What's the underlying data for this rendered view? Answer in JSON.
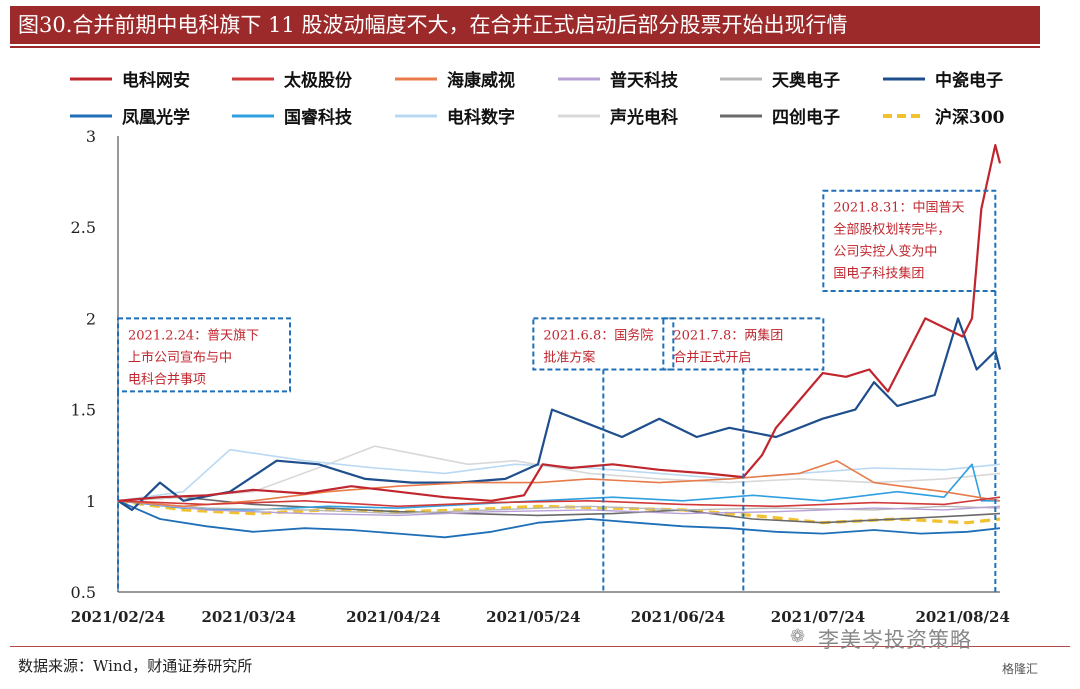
{
  "title": "图30.合并前期中电科旗下 11 股波动幅度不大，在合并正式启动后部分股票开始出现行情",
  "source": "数据来源：Wind，财通证券研究所",
  "watermark": "李美岑投资策略",
  "logo": "格隆汇",
  "chart_data": {
    "type": "line",
    "title": "图30.合并前期中电科旗下 11 股波动幅度不大，在合并正式启动后部分股票开始出现行情",
    "xlabel": "",
    "ylabel": "",
    "ylim": [
      0.5,
      3
    ],
    "yticks": [
      0.5,
      1,
      1.5,
      2,
      2.5,
      3
    ],
    "ytick_labels": [
      "0.5",
      "1",
      "1.5",
      "2",
      "2.5",
      "3"
    ],
    "x_range": [
      "2021-02-24",
      "2021-09-01"
    ],
    "xticks": [
      "2021-02-24",
      "2021-03-24",
      "2021-04-24",
      "2021-05-24",
      "2021-06-24",
      "2021-07-24",
      "2021-08-24"
    ],
    "xtick_labels": [
      "2021/02/24",
      "2021/03/24",
      "2021/04/24",
      "2021/05/24",
      "2021/06/24",
      "2021/07/24",
      "2021/08/24"
    ],
    "grid": false,
    "legend_position": "top",
    "series": [
      {
        "name": "电科网安",
        "color": "#c0262d",
        "width": 2.2,
        "x": [
          "2021-02-24",
          "2021-03-05",
          "2021-03-15",
          "2021-03-25",
          "2021-04-05",
          "2021-04-15",
          "2021-04-25",
          "2021-05-05",
          "2021-05-15",
          "2021-05-22",
          "2021-05-26",
          "2021-06-01",
          "2021-06-10",
          "2021-06-20",
          "2021-06-30",
          "2021-07-08",
          "2021-07-12",
          "2021-07-15",
          "2021-07-20",
          "2021-07-25",
          "2021-07-30",
          "2021-08-04",
          "2021-08-08",
          "2021-08-12",
          "2021-08-16",
          "2021-08-20",
          "2021-08-24",
          "2021-08-26",
          "2021-08-28",
          "2021-08-31",
          "2021-09-01"
        ],
        "y": [
          1.0,
          1.02,
          1.03,
          1.06,
          1.04,
          1.08,
          1.05,
          1.02,
          1.0,
          1.03,
          1.2,
          1.18,
          1.2,
          1.17,
          1.15,
          1.13,
          1.25,
          1.4,
          1.55,
          1.7,
          1.68,
          1.72,
          1.6,
          1.8,
          2.0,
          1.95,
          1.9,
          2.0,
          2.6,
          2.95,
          2.85
        ]
      },
      {
        "name": "太极股份",
        "color": "#d13a3a",
        "width": 1.6,
        "x": [
          "2021-02-24",
          "2021-03-15",
          "2021-04-05",
          "2021-04-25",
          "2021-05-15",
          "2021-06-05",
          "2021-06-25",
          "2021-07-15",
          "2021-08-05",
          "2021-08-20",
          "2021-09-01"
        ],
        "y": [
          1.0,
          0.98,
          1.0,
          0.97,
          0.99,
          1.0,
          0.98,
          0.97,
          0.99,
          0.98,
          1.02
        ]
      },
      {
        "name": "海康威视",
        "color": "#e87b4a",
        "width": 1.6,
        "x": [
          "2021-02-24",
          "2021-03-10",
          "2021-03-25",
          "2021-04-10",
          "2021-04-25",
          "2021-05-10",
          "2021-05-25",
          "2021-06-05",
          "2021-06-20",
          "2021-07-05",
          "2021-07-20",
          "2021-07-28",
          "2021-08-05",
          "2021-08-20",
          "2021-09-01"
        ],
        "y": [
          1.0,
          0.97,
          1.0,
          1.05,
          1.08,
          1.1,
          1.1,
          1.12,
          1.1,
          1.12,
          1.15,
          1.22,
          1.1,
          1.05,
          1.0
        ]
      },
      {
        "name": "普天科技",
        "color": "#b7a0d6",
        "width": 1.4,
        "x": [
          "2021-02-24",
          "2021-03-15",
          "2021-04-05",
          "2021-04-25",
          "2021-05-15",
          "2021-06-05",
          "2021-06-25",
          "2021-07-15",
          "2021-08-05",
          "2021-08-20",
          "2021-09-01"
        ],
        "y": [
          1.0,
          0.95,
          0.93,
          0.92,
          0.94,
          0.95,
          0.93,
          0.94,
          0.96,
          0.95,
          0.97
        ]
      },
      {
        "name": "天奥电子",
        "color": "#b8b8b8",
        "width": 1.4,
        "x": [
          "2021-02-24",
          "2021-03-15",
          "2021-04-05",
          "2021-04-25",
          "2021-05-15",
          "2021-06-05",
          "2021-06-25",
          "2021-07-15",
          "2021-08-05",
          "2021-08-20",
          "2021-09-01"
        ],
        "y": [
          1.0,
          0.96,
          0.95,
          0.93,
          0.95,
          0.97,
          0.95,
          0.96,
          0.95,
          0.97,
          0.96
        ]
      },
      {
        "name": "中瓷电子",
        "color": "#1f4e8c",
        "width": 2.2,
        "x": [
          "2021-02-24",
          "2021-02-27",
          "2021-03-05",
          "2021-03-10",
          "2021-03-20",
          "2021-03-30",
          "2021-04-08",
          "2021-04-18",
          "2021-04-28",
          "2021-05-08",
          "2021-05-18",
          "2021-05-25",
          "2021-05-28",
          "2021-06-05",
          "2021-06-12",
          "2021-06-20",
          "2021-06-28",
          "2021-07-05",
          "2021-07-15",
          "2021-07-25",
          "2021-08-01",
          "2021-08-05",
          "2021-08-10",
          "2021-08-18",
          "2021-08-23",
          "2021-08-27",
          "2021-08-31",
          "2021-09-01"
        ],
        "y": [
          1.0,
          0.95,
          1.1,
          1.0,
          1.05,
          1.22,
          1.2,
          1.12,
          1.1,
          1.1,
          1.12,
          1.2,
          1.5,
          1.42,
          1.35,
          1.45,
          1.35,
          1.4,
          1.35,
          1.45,
          1.5,
          1.65,
          1.52,
          1.58,
          2.0,
          1.72,
          1.82,
          1.72
        ]
      },
      {
        "name": "凤凰光学",
        "color": "#1f6fb8",
        "width": 1.8,
        "x": [
          "2021-02-24",
          "2021-03-05",
          "2021-03-15",
          "2021-03-25",
          "2021-04-05",
          "2021-04-15",
          "2021-04-25",
          "2021-05-05",
          "2021-05-15",
          "2021-05-25",
          "2021-06-05",
          "2021-06-15",
          "2021-06-25",
          "2021-07-05",
          "2021-07-15",
          "2021-07-25",
          "2021-08-05",
          "2021-08-15",
          "2021-08-25",
          "2021-09-01"
        ],
        "y": [
          1.0,
          0.9,
          0.86,
          0.83,
          0.85,
          0.84,
          0.82,
          0.8,
          0.83,
          0.88,
          0.9,
          0.88,
          0.86,
          0.85,
          0.83,
          0.82,
          0.84,
          0.82,
          0.83,
          0.85
        ]
      },
      {
        "name": "国睿科技",
        "color": "#2f9fe0",
        "width": 1.6,
        "x": [
          "2021-02-24",
          "2021-03-10",
          "2021-03-25",
          "2021-04-10",
          "2021-04-25",
          "2021-05-10",
          "2021-05-25",
          "2021-06-10",
          "2021-06-25",
          "2021-07-10",
          "2021-07-25",
          "2021-08-10",
          "2021-08-20",
          "2021-08-26",
          "2021-08-28",
          "2021-09-01"
        ],
        "y": [
          1.0,
          0.96,
          0.95,
          0.97,
          0.96,
          0.98,
          1.0,
          1.02,
          1.0,
          1.03,
          1.0,
          1.05,
          1.02,
          1.2,
          1.0,
          1.0
        ]
      },
      {
        "name": "电科数字",
        "color": "#b9d8f2",
        "width": 1.6,
        "x": [
          "2021-02-24",
          "2021-03-10",
          "2021-03-20",
          "2021-04-05",
          "2021-04-20",
          "2021-05-05",
          "2021-05-20",
          "2021-06-05",
          "2021-06-20",
          "2021-07-05",
          "2021-07-20",
          "2021-08-05",
          "2021-08-20",
          "2021-09-01"
        ],
        "y": [
          1.0,
          1.05,
          1.28,
          1.22,
          1.18,
          1.15,
          1.2,
          1.18,
          1.15,
          1.12,
          1.15,
          1.18,
          1.17,
          1.2
        ]
      },
      {
        "name": "声光电科",
        "color": "#d8d8d8",
        "width": 1.6,
        "x": [
          "2021-02-24",
          "2021-03-10",
          "2021-03-25",
          "2021-04-10",
          "2021-04-20",
          "2021-04-30",
          "2021-05-10",
          "2021-05-20",
          "2021-06-05",
          "2021-06-20",
          "2021-07-05",
          "2021-07-20",
          "2021-08-05",
          "2021-08-20",
          "2021-09-01"
        ],
        "y": [
          1.0,
          1.02,
          1.05,
          1.2,
          1.3,
          1.25,
          1.2,
          1.22,
          1.15,
          1.12,
          1.1,
          1.12,
          1.1,
          1.12,
          1.15
        ]
      },
      {
        "name": "四创电子",
        "color": "#6a6a6a",
        "width": 1.6,
        "x": [
          "2021-02-24",
          "2021-03-10",
          "2021-03-25",
          "2021-04-10",
          "2021-04-25",
          "2021-05-10",
          "2021-05-25",
          "2021-06-10",
          "2021-06-25",
          "2021-07-10",
          "2021-07-25",
          "2021-08-10",
          "2021-08-25",
          "2021-09-01"
        ],
        "y": [
          1.0,
          1.02,
          0.98,
          0.96,
          0.94,
          0.93,
          0.92,
          0.93,
          0.95,
          0.9,
          0.88,
          0.9,
          0.92,
          0.93
        ]
      },
      {
        "name": "沪深300",
        "color": "#f2c12e",
        "width": 3.2,
        "dashed": true,
        "x": [
          "2021-02-24",
          "2021-03-10",
          "2021-03-25",
          "2021-04-10",
          "2021-04-25",
          "2021-05-10",
          "2021-05-25",
          "2021-06-10",
          "2021-06-25",
          "2021-07-10",
          "2021-07-25",
          "2021-08-10",
          "2021-08-25",
          "2021-09-01"
        ],
        "y": [
          1.0,
          0.95,
          0.93,
          0.95,
          0.94,
          0.95,
          0.97,
          0.96,
          0.95,
          0.92,
          0.88,
          0.9,
          0.88,
          0.9
        ]
      }
    ],
    "annotations": [
      {
        "text": [
          "2021.2.24：普天旗下",
          "上市公司宣布与中",
          "电科合并事项"
        ],
        "x": "2021-02-24",
        "y_top": 2.0,
        "y_bottom": 1.6,
        "text_color": "#c0262d",
        "line_color": "#1f6fb8"
      },
      {
        "text": [
          "2021.6.8：国务院",
          "批准方案"
        ],
        "x": "2021-06-08",
        "y_top": 2.0,
        "y_bottom": 1.72,
        "text_color": "#c0262d",
        "line_color": "#1f6fb8"
      },
      {
        "text": [
          "2021.7.8：两集团",
          "合并正式开启"
        ],
        "x": "2021-07-08",
        "y_top": 2.0,
        "y_bottom": 1.72,
        "text_color": "#c0262d",
        "line_color": "#1f6fb8"
      },
      {
        "text": [
          "2021.8.31：中国普天",
          "全部股权划转完毕，",
          "公司实控人变为中",
          "国电子科技集团"
        ],
        "x": "2021-08-31",
        "y_top": 2.7,
        "y_bottom": 2.15,
        "text_color": "#c0262d",
        "line_color": "#1f6fb8"
      }
    ]
  }
}
